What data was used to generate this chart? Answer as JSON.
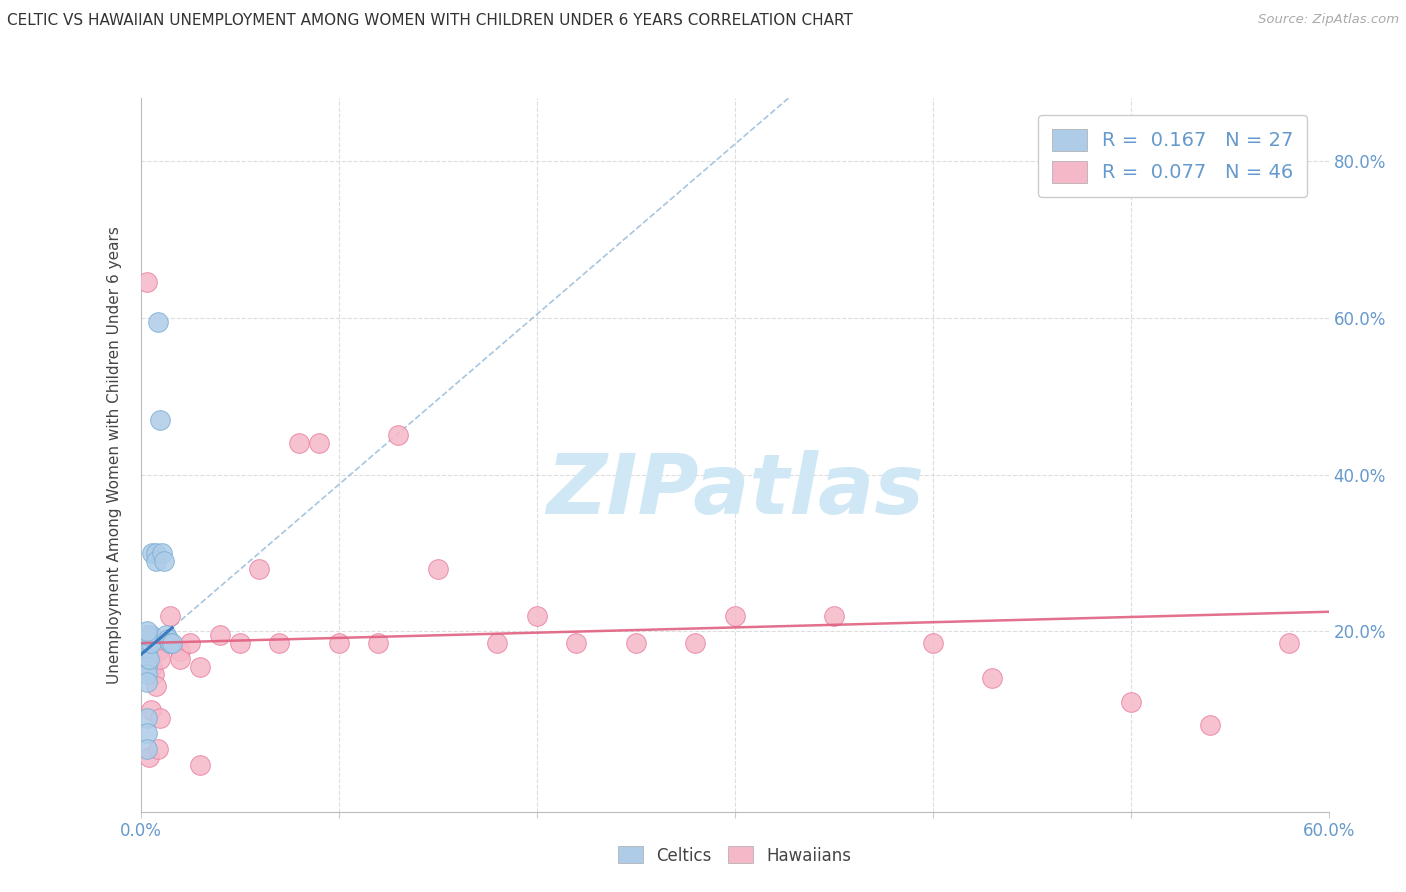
{
  "title": "CELTIC VS HAWAIIAN UNEMPLOYMENT AMONG WOMEN WITH CHILDREN UNDER 6 YEARS CORRELATION CHART",
  "source": "Source: ZipAtlas.com",
  "ylabel": "Unemployment Among Women with Children Under 6 years",
  "xlim": [
    0.0,
    0.6
  ],
  "ylim": [
    -0.03,
    0.88
  ],
  "celtics_R": 0.167,
  "celtics_N": 27,
  "hawaiians_R": 0.077,
  "hawaiians_N": 46,
  "celtics_color": "#aecce8",
  "celtics_edge": "#7aafd4",
  "hawaiians_color": "#f5b8c8",
  "hawaiians_edge": "#e87fa0",
  "trend_celtic_dashed_color": "#90b8d8",
  "trend_celtic_solid_color": "#3a7abf",
  "trend_hawaiian_color": "#e06080",
  "background": "#ffffff",
  "grid_color": "#dddddd",
  "title_color": "#333333",
  "tick_color": "#6699cc",
  "watermark_color": "#d0e8f5",
  "celtics_x": [
    0.003,
    0.003,
    0.003,
    0.003,
    0.003,
    0.003,
    0.003,
    0.003,
    0.003,
    0.003,
    0.004,
    0.004,
    0.005,
    0.005,
    0.006,
    0.008,
    0.008,
    0.009,
    0.01,
    0.011,
    0.012,
    0.013,
    0.014,
    0.015,
    0.016,
    0.003,
    0.003
  ],
  "celtics_y": [
    0.19,
    0.185,
    0.175,
    0.165,
    0.155,
    0.145,
    0.135,
    0.09,
    0.07,
    0.05,
    0.185,
    0.165,
    0.195,
    0.185,
    0.3,
    0.3,
    0.29,
    0.595,
    0.47,
    0.3,
    0.29,
    0.195,
    0.19,
    0.185,
    0.185,
    0.195,
    0.2
  ],
  "hawaiians_x": [
    0.002,
    0.003,
    0.004,
    0.004,
    0.005,
    0.005,
    0.006,
    0.006,
    0.007,
    0.007,
    0.008,
    0.008,
    0.009,
    0.009,
    0.01,
    0.01,
    0.015,
    0.015,
    0.02,
    0.02,
    0.025,
    0.03,
    0.03,
    0.04,
    0.05,
    0.06,
    0.07,
    0.08,
    0.09,
    0.1,
    0.12,
    0.13,
    0.15,
    0.18,
    0.2,
    0.22,
    0.25,
    0.28,
    0.3,
    0.35,
    0.4,
    0.43,
    0.5,
    0.54,
    0.58,
    0.003
  ],
  "hawaiians_y": [
    0.185,
    0.175,
    0.165,
    0.04,
    0.155,
    0.1,
    0.185,
    0.155,
    0.175,
    0.145,
    0.185,
    0.13,
    0.175,
    0.05,
    0.165,
    0.09,
    0.22,
    0.185,
    0.175,
    0.165,
    0.185,
    0.155,
    0.03,
    0.195,
    0.185,
    0.28,
    0.185,
    0.44,
    0.44,
    0.185,
    0.185,
    0.45,
    0.28,
    0.185,
    0.22,
    0.185,
    0.185,
    0.185,
    0.22,
    0.22,
    0.185,
    0.14,
    0.11,
    0.08,
    0.185,
    0.645
  ]
}
